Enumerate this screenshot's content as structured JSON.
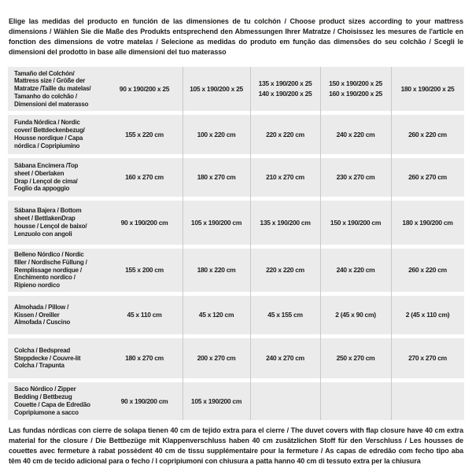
{
  "intro": "Elige las medidas del producto en función de las dimensiones de tu colchón / Choose product sizes according to your mattress dimensions / Wählen Sie die Maße des Produkts entsprechend den Abmessungen Ihrer Matratze / Choisissez les mesures de l'article en fonction des dimensions de votre matelas / Selecione as medidas do produto em função das dimensões do seu colchão / Scegli le dimensioni del prodotto in base alle dimensioni del tuo materasso",
  "footer": "Las fundas nórdicas con cierre de solapa tienen 40 cm de tejido extra para el cierre / The duvet covers with flap closure have 40 cm extra material for the closure / Die Bettbezüge mit Klappenverschluss haben 40 cm zusätzlichen Stoff für den Verschluss / Les housses de couettes avec fermeture à rabat possèdent 40 cm de tissu supplémentaire pour la fermeture / As capas de edredão com fecho tipo aba têm 40 cm de tecido adicional para o fecho / I copripiumoni con chiusura a patta hanno 40 cm di tessuto extra per la chiusura",
  "colors": {
    "row_background": "#ebebeb",
    "separator_line": "#c9c9c9",
    "text": "#1d1d1b"
  },
  "table": {
    "rows": [
      {
        "label": "Tamaño del Colchón/\nMattress size / Größe der\nMatratze /Taille du matelas/\nTamanho do colchão /\nDimensioni del materasso",
        "values": [
          "90 x 190/200 x 25",
          "105 x 190/200 x 25",
          "135 x 190/200 x 25\n140 x 190/200 x 25",
          "150 x 190/200 x 25\n160 x 190/200 x 25",
          "180 x 190/200 x 25"
        ]
      },
      {
        "label": "Funda Nórdica / Nordic\ncover/ Bettdeckenbezug/\nHousse nordique / Capa\nnórdica / Copripiumino",
        "values": [
          "155 x 220 cm",
          "100 x 220 cm",
          "220 x 220 cm",
          "240 x 220 cm",
          "260 x 220 cm"
        ]
      },
      {
        "label": "Sábana Encimera /Top\nsheet / Oberlaken\nDrap / Lençol de cima/\nFoglio da appoggio",
        "values": [
          "160 x 270 cm",
          "180 x 270 cm",
          "210 x 270 cm",
          "230 x 270 cm",
          "260 x 270 cm"
        ]
      },
      {
        "label": "Sábana Bajera / Bottom\nsheet / BettlakenDrap\nhousse / Lençol de baixo/\nLenzuolo con angoli",
        "values": [
          "90 x 190/200 cm",
          "105 x 190/200 cm",
          "135 x 190/200 cm",
          "150 x 190/200 cm",
          "180 x 190/200 cm"
        ]
      },
      {
        "label": "Belleno Nórdico / Nordic\nfiller / Nordische Füllung /\nRemplissage nordique /\nEnchimento nordico /\nRipieno nordico",
        "values": [
          "155 x 200 cm",
          "180 x 220 cm",
          "220 x 220 cm",
          "240 x 220 cm",
          "260 x 220 cm"
        ]
      },
      {
        "label": "Almohada / Pillow /\nKissen / Oreiller\nAlmofada / Cuscino",
        "values": [
          "45 x 110 cm",
          "45 x 120 cm",
          "45 x 155 cm",
          "2 (45 x 90 cm)",
          "2 (45 x 110 cm)"
        ]
      },
      {
        "label": "Colcha / Bedspread\nSteppdecke / Couvre-lit\nColcha / Trapunta",
        "values": [
          "180 x 270 cm",
          "200 x 270 cm",
          "240 x 270 cm",
          "250 x 270 cm",
          "270 x 270 cm"
        ]
      },
      {
        "label": "Saco Nórdico / Zipper\nBedding / Bettbezug\nCouette / Capa de Edredão\nCopripiumone a sacco",
        "values": [
          "90 x 190/200 cm",
          "105 x 190/200 cm",
          "",
          "",
          ""
        ]
      }
    ]
  }
}
